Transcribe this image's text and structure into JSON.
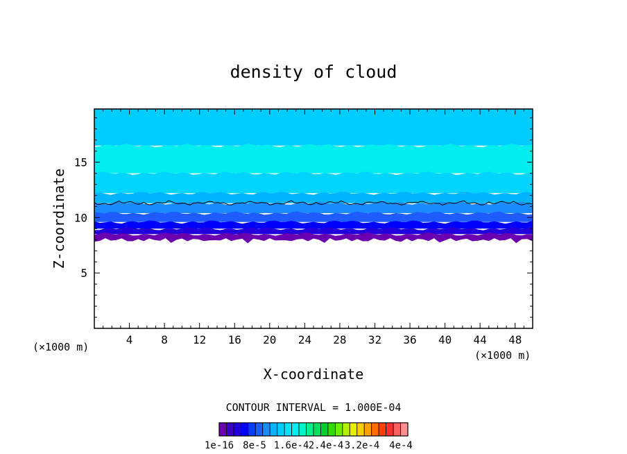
{
  "chart_data": {
    "type": "heatmap",
    "title": "density of cloud",
    "xlabel": "X-coordinate",
    "ylabel": "Z-coordinate",
    "x_unit": "(×1000 m)",
    "x_unit_right": "(×1000 m)",
    "xlim": [
      0,
      50
    ],
    "ylim": [
      0,
      19.8
    ],
    "x_ticks": [
      4,
      8,
      12,
      16,
      20,
      24,
      28,
      32,
      36,
      40,
      44,
      48
    ],
    "y_ticks": [
      5,
      10,
      15
    ],
    "bands": [
      {
        "z_bottom": 16.5,
        "z_top": 19.8,
        "color": "#00ccff"
      },
      {
        "z_bottom": 14.0,
        "z_top": 16.5,
        "color": "#00eeee"
      },
      {
        "z_bottom": 12.2,
        "z_top": 14.0,
        "color": "#00d4ff"
      },
      {
        "z_bottom": 11.3,
        "z_top": 12.2,
        "color": "#00b4ff"
      },
      {
        "z_bottom": 10.4,
        "z_top": 11.3,
        "color": "#1a8cff"
      },
      {
        "z_bottom": 9.6,
        "z_top": 10.4,
        "color": "#1f5cff"
      },
      {
        "z_bottom": 9.0,
        "z_top": 9.6,
        "color": "#0000ff"
      },
      {
        "z_bottom": 8.5,
        "z_top": 9.0,
        "color": "#2200dd"
      },
      {
        "z_bottom": 8.0,
        "z_top": 8.5,
        "color": "#6a00b0"
      }
    ],
    "contour_level_z": 11.3,
    "contour_interval_label": "CONTOUR INTERVAL = 1.000E-04",
    "colorbar": {
      "colors": [
        "#6a00b0",
        "#3d00c8",
        "#2200dd",
        "#0000ff",
        "#0a3cff",
        "#1f5cff",
        "#1a8cff",
        "#00b4ff",
        "#00ccff",
        "#00e4ff",
        "#00eeee",
        "#00f5c8",
        "#00f090",
        "#00e060",
        "#00d030",
        "#30dd00",
        "#70ee00",
        "#b0f000",
        "#e8f000",
        "#ffd000",
        "#ffa000",
        "#ff7000",
        "#ff4000",
        "#ff3030",
        "#ff6060",
        "#ff9090"
      ],
      "labels": [
        "1e-16",
        "8e-5",
        "1.6e-4",
        "2.4e-4",
        "3.2e-4",
        "4e-4"
      ]
    }
  }
}
